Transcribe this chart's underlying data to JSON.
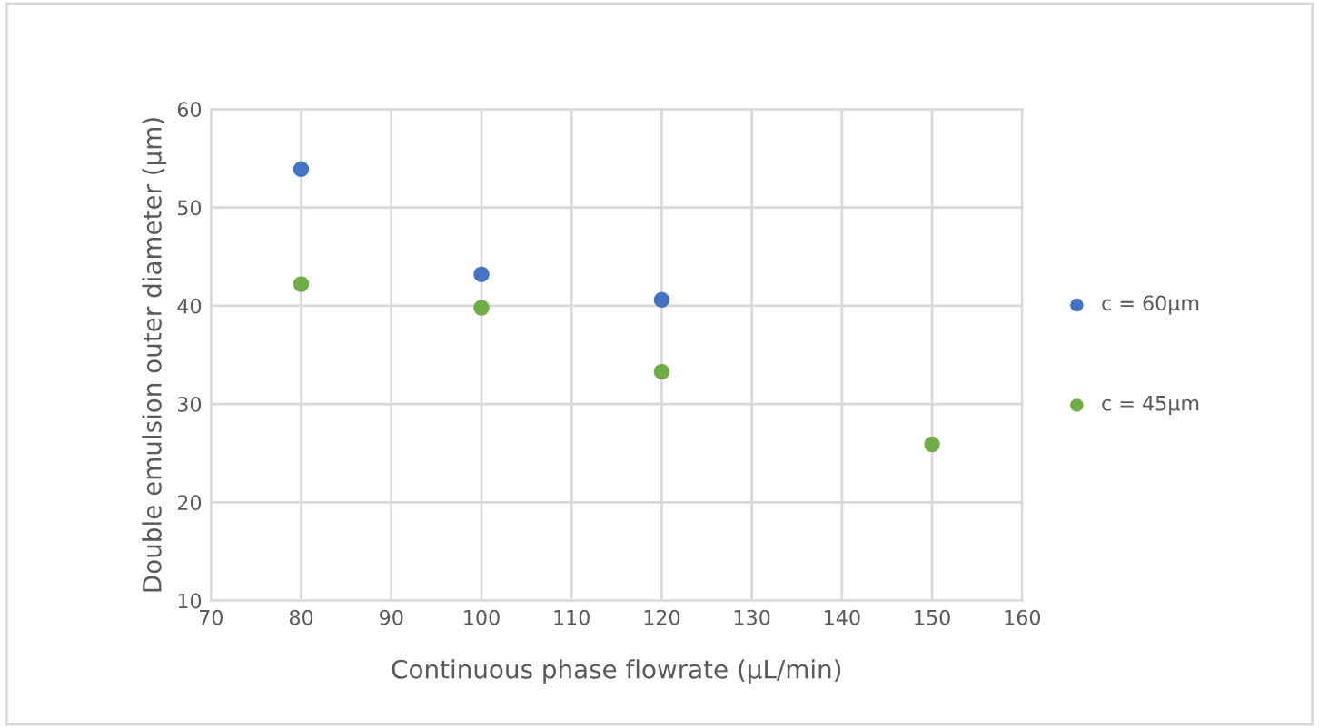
{
  "chart_data": {
    "type": "scatter",
    "xlabel": "Continuous phase flowrate (µL/min)",
    "ylabel": "Double emulsion outer diameter (µm)",
    "xlim": [
      70,
      160
    ],
    "xticks": [
      70,
      80,
      90,
      100,
      110,
      120,
      130,
      140,
      150,
      160
    ],
    "ylim": [
      10,
      60
    ],
    "yticks": [
      10,
      20,
      30,
      40,
      50,
      60
    ],
    "grid": true,
    "legend": "right",
    "marker": "circle",
    "series": [
      {
        "name": "c = 60µm",
        "color": "#4472c4",
        "x": [
          80,
          100,
          120
        ],
        "values": [
          53.9,
          43.2,
          40.6
        ]
      },
      {
        "name": "c = 45µm",
        "color": "#70ad47",
        "x": [
          80,
          100,
          120,
          150
        ],
        "values": [
          42.2,
          39.8,
          33.3,
          25.9
        ]
      }
    ]
  }
}
